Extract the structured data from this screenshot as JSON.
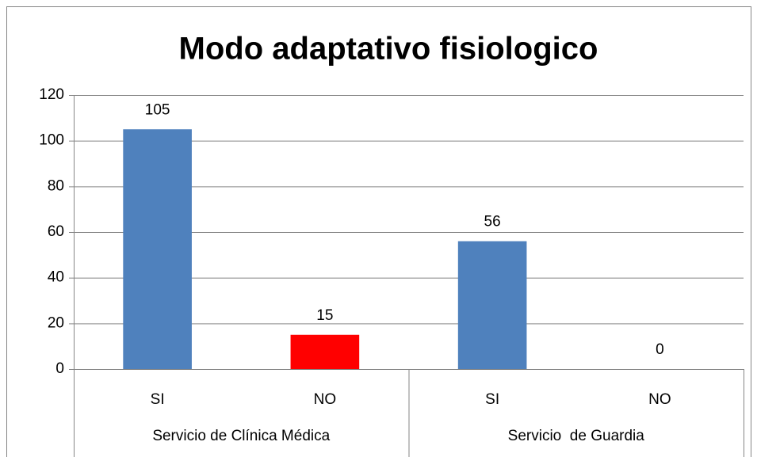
{
  "chart_data": {
    "type": "bar",
    "title": "Modo adaptativo fisiologico",
    "categories": [
      "SI",
      "NO",
      "SI",
      "NO"
    ],
    "groups": [
      "Servicio de Clínica Médica",
      "Servicio  de Guardia"
    ],
    "values": [
      105,
      15,
      56,
      0
    ],
    "colors": [
      "#4f81bd",
      "#ff0000",
      "#4f81bd",
      "#4f81bd"
    ],
    "ylim": [
      0,
      120
    ],
    "yticks": [
      0,
      20,
      40,
      60,
      80,
      100,
      120
    ],
    "grid": true
  }
}
